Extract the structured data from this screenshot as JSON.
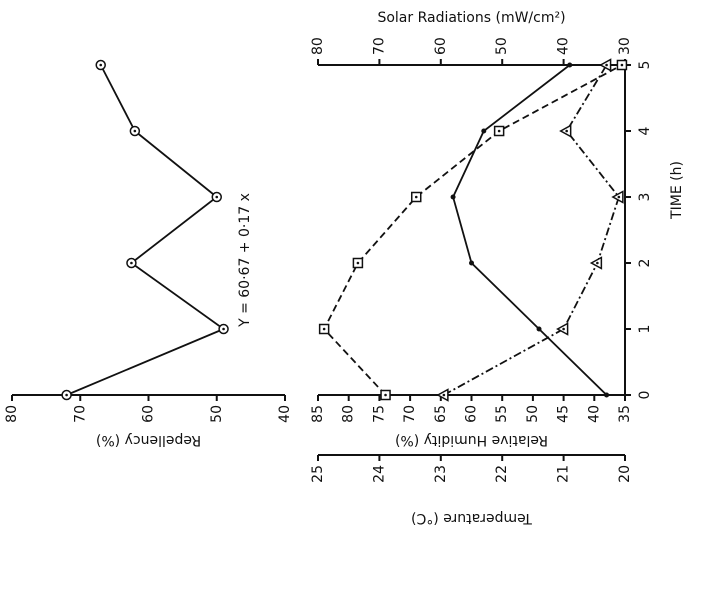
{
  "chart_data": [
    {
      "type": "line",
      "annotation": "Y = 60·67 + 0·17 x",
      "y_label": "Repellency (%)",
      "x": [
        0,
        1,
        2,
        3,
        4,
        5
      ],
      "xlim": [
        0,
        5
      ],
      "ylim": [
        40,
        80
      ],
      "yticks": [
        80,
        70,
        60,
        50,
        40
      ],
      "series": [
        {
          "color": "#111111",
          "marker": "circle",
          "dash": "solid",
          "axis": "y",
          "values": [
            72,
            49,
            62.5,
            50,
            62,
            67
          ]
        }
      ]
    },
    {
      "type": "line",
      "x_label": "TIME (h)",
      "x": [
        0,
        1,
        2,
        3,
        4,
        5
      ],
      "xlim": [
        0,
        5
      ],
      "xticks": [
        0,
        1,
        2,
        3,
        4,
        5
      ],
      "y_label": "Relative Humidity (%)",
      "ylim": [
        35,
        85
      ],
      "yticks": [
        85,
        80,
        75,
        70,
        65,
        60,
        55,
        50,
        45,
        40,
        35
      ],
      "y2_label": "Solar Radiations (mW/cm²)",
      "y2lim": [
        30,
        80
      ],
      "y2ticks": [
        80,
        70,
        60,
        50,
        40,
        30
      ],
      "y3_label": "Temperature (°C)",
      "y3lim": [
        20,
        25
      ],
      "y3ticks": [
        25,
        24,
        23,
        22,
        21,
        20
      ],
      "series": [
        {
          "color": "#111111",
          "marker": "square",
          "dash": "dashed",
          "axis": "y",
          "values": [
            74,
            84,
            78.5,
            69,
            55.5,
            35.5
          ]
        },
        {
          "color": "#111111",
          "marker": "triangle",
          "dash": "dashdot",
          "axis": "y2",
          "values": [
            59.5,
            40,
            34.5,
            31,
            39.5,
            33
          ]
        },
        {
          "color": "#111111",
          "marker": "dot",
          "dash": "solid",
          "axis": "y3",
          "values": [
            20.3,
            21.4,
            22.5,
            22.8,
            22.3,
            20.9
          ]
        }
      ]
    }
  ]
}
